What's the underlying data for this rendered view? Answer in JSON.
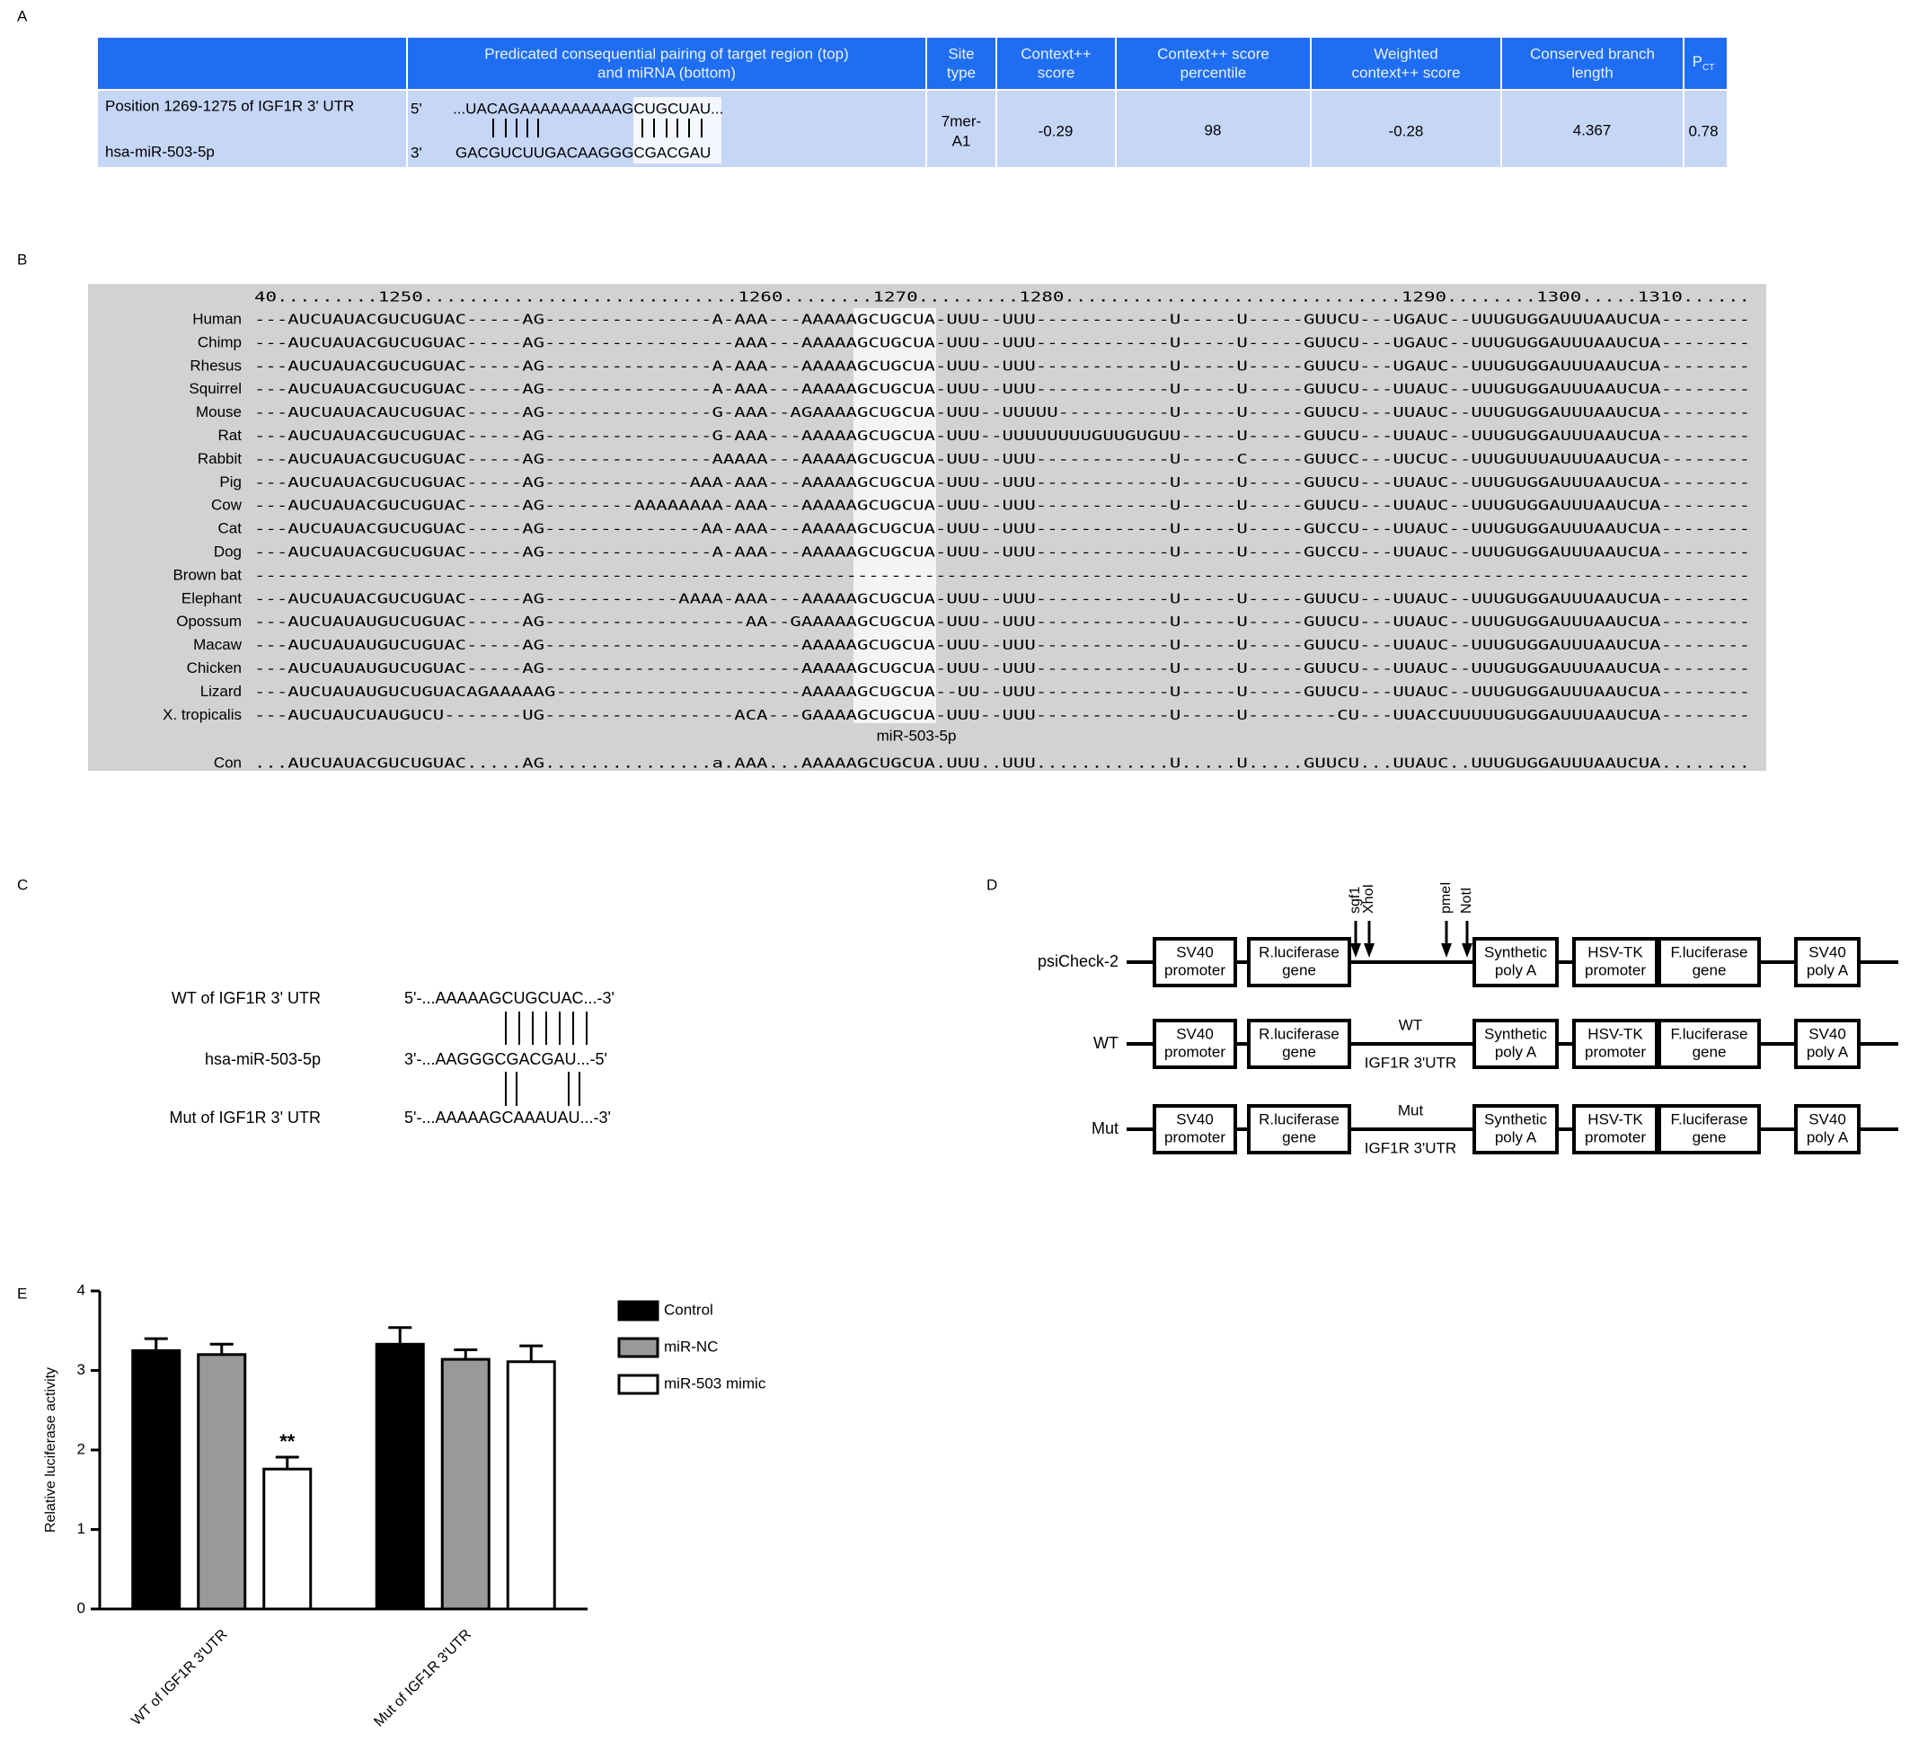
{
  "panel_labels": [
    "A",
    "B",
    "C",
    "D",
    "E"
  ],
  "panel_a": {
    "headers": [
      [
        "Predicated consequential pairing of target region (top)",
        "and miRNA (bottom)"
      ],
      [
        "Site",
        "type"
      ],
      [
        "Context++",
        "score"
      ],
      [
        "Context++ score",
        "percentile"
      ],
      [
        "Weighted",
        "context++ score"
      ],
      [
        "Conserved branch",
        "length"
      ]
    ],
    "pct_header": {
      "text": "P",
      "sub": "CT"
    },
    "row": {
      "position": "Position 1269-1275 of IGF1R 3' UTR",
      "mirna": "hsa-miR-503-5p",
      "top_end": "5'",
      "top_seq": "...UACAGAAAAAAAAAAGCUGCUAU...",
      "bottom_end": "3'",
      "bottom_seq": "GACGUCUUGACAAGGGCGACGAU",
      "site_type": [
        "7mer-",
        "A1"
      ],
      "context_score": -0.29,
      "percentile": 98,
      "weighted_score": -0.28,
      "branch_length": 4.367,
      "pct": 0.78
    }
  },
  "panel_b": {
    "ruler": " 40.........1250............................1260........1270.........1280..............................1290........1300.....1310......",
    "species": [
      {
        "name": "Human",
        "name_color": "#1a1ad6",
        "color": "#000000",
        "sequence": "---AUCUAUACGUCUGUAC-----AG---------------A-AAA---AAAAAGCUGCUA-UUU--UUU------------U-----U-----GUUCU---UGAUC--UUUGUGGAUUUAAUCUA--------"
      },
      {
        "name": "Chimp",
        "name_color": "#1a1ad6",
        "color": "#1a1ad6",
        "sequence": "---AUCUAUACGUCUGUAC-----AG-----------------AAA---AAAAAGCUGCUA-UUU--UUU------------U-----U-----GUUCU---UGAUC--UUUGUGGAUUUAAUCUA--------"
      },
      {
        "name": "Rhesus",
        "name_color": "#1a1ad6",
        "color": "#8c8c8c",
        "sequence": "---AUCUAUACGUCUGUAC-----AG---------------A-AAA---AAAAAGCUGCUA-UUU--UUU------------U-----U-----GUUCU---UGAUC--UUUGUGGAUUUAAUCUA--------"
      },
      {
        "name": "Squirrel",
        "name_color": "#1a8a1a",
        "color": "#1a1ad6",
        "sequence": "---AUCUAUACGUCUGUAC-----AG---------------A-AAA---AAAAAGCUGCUA-UUU--UUU------------U-----U-----GUUCU---UUAUC--UUUGUGGAUUUAAUCUA--------"
      },
      {
        "name": "Mouse",
        "name_color": "#1a8a1a",
        "color": "#b0179e",
        "sequence": "---AUCUAUACAUCUGUAC-----AG---------------G-AAA--AGAAAAGCUGCUA-UUU--UUUUU----------U-----U-----GUUCU---UUAUC--UUUGUGGAUUUAAUCUA--------"
      },
      {
        "name": "Rat",
        "name_color": "#1a1ad6",
        "color": "#000000",
        "sequence": "---AUCUAUACGUCUGUAC-----AG---------------G-AAA---AAAAAGCUGCUA-UUU--UUUUUUUUGUUGUGUU-----U-----GUUCU---UUAUC--UUUGUGGAUUUAAUCUA--------"
      },
      {
        "name": "Rabbit",
        "name_color": "#1a8a1a",
        "color": "#1a1ad6",
        "sequence": "---AUCUAUACGUCUGUAC-----AG---------------AAAAA---AAAAAGCUGCUA-UUU--UUU------------U-----C-----GUUCC---UUCUC--UUUGUUUAUUUAAUCUA--------"
      },
      {
        "name": "Pig",
        "name_color": "#1a1ad6",
        "color": "#8c8c8c",
        "sequence": "---AUCUAUACGUCUGUAC-----AG-------------AAA-AAA---AAAAAGCUGCUA-UUU--UUU------------U-----U-----GUUCU---UUAUC--UUUGUGGAUUUAAUCUA--------"
      },
      {
        "name": "Cow",
        "name_color": "#1a1ad6",
        "color": "#1a1ad6",
        "sequence": "---AUCUAUACGUCUGUAC-----AG--------AAAAAAAA-AAA---AAAAAGCUGCUA-UUU--UUU------------U-----U-----GUUCU---UUAUC--UUUGUGGAUUUAAUCUA--------"
      },
      {
        "name": "Cat",
        "name_color": "#1a1ad6",
        "color": "#b0179e",
        "sequence": "---AUCUAUACGUCUGUAC-----AG--------------AA-AAA---AAAAAGCUGCUA-UUU--UUU------------U-----U-----GUCCU---UUAUC--UUUGUGGAUUUAAUCUA--------"
      },
      {
        "name": "Dog",
        "name_color": "#1a1ad6",
        "color": "#000000",
        "sequence": "---AUCUAUACGUCUGUAC-----AG---------------A-AAA---AAAAAGCUGCUA-UUU--UUU------------U-----U-----GUCCU---UUAUC--UUUGUGGAUUUAAUCUA--------"
      },
      {
        "name": "Brown bat",
        "name_color": "#1a1ad6",
        "color": "#1a1ad6",
        "sequence": "--------------------------------------------------------------------------------------------------------------------------------------"
      },
      {
        "name": "Elephant",
        "name_color": "#1a8a1a",
        "color": "#8c8c8c",
        "sequence": "---AUCUAUACGUCUGUAC-----AG------------AAAA-AAA---AAAAAGCUGCUA-UUU--UUU------------U-----U-----GUUCU---UUAUC--UUUGUGGAUUUAAUCUA--------"
      },
      {
        "name": "Opossum",
        "name_color": "#1a1ad6",
        "color": "#1a1ad6",
        "sequence": "---AUCUAUAUGUCUGUAC-----AG------------------AA--GAAAAAGCUGCUA-UUU--UUU------------U-----U-----GUUCU---UUAUC--UUUGUGGAUUUAAUCUA--------"
      },
      {
        "name": "Macaw",
        "name_color": "#1a8a1a",
        "color": "#b0179e",
        "sequence": "---AUCUAUAUGUCUGUAC-----AG-----------------------AAAAAGCUGCUA-UUU--UUU------------U-----U-----GUUCU---UUAUC--UUUGUGGAUUUAAUCUA--------"
      },
      {
        "name": "Chicken",
        "name_color": "#1a8a1a",
        "color": "#000000",
        "sequence": "---AUCUAUAUGUCUGUAC-----AG-----------------------AAAAAGCUGCUA-UUU--UUU------------U-----U-----GUUCU---UUAUC--UUUGUGGAUUUAAUCUA--------"
      },
      {
        "name": "Lizard",
        "name_color": "#1a1ad6",
        "color": "#1a1ad6",
        "sequence": "---AUCUAUAUGUCUGUACAGAAAAAG----------------------AAAAAGCUGCUA--UU--UUU------------U-----U-----GUUCU---UUAUC--UUUGUGGAUUUAAUCUA--------"
      },
      {
        "name": "X. tropicalis",
        "name_color": "#1a1ad6",
        "color": "#8c8c8c",
        "sequence": "---AUCUAUCUAUGUCU-------UG-----------------ACA---GAAAAGCUGCUA-UUU--UUU------------U-----U--------CU---UUACCUUUUUGUGGAUUUAAUCUA--------"
      }
    ],
    "mirna_label": "miR-503-5p",
    "consensus": {
      "name": "Con",
      "name_color": "#1a1ad6",
      "color": "#1a8a1a",
      "sequence": "...AUCUAUACGUCUGUAC.....AG...............a.AAA...AAAAAGCUGCUA.UUU..UUU............U.....U.....GUUCU...UUAUC..UUUGUGGAUUUAAUCUA........"
    }
  },
  "panel_c": {
    "rows": [
      {
        "label": "WT of IGF1R 3' UTR",
        "sequence": "5'-...AAAAAGCUGCUAC...-3'"
      },
      {
        "label": "hsa-miR-503-5p",
        "sequence": "3'-...AAGGGCGACGAU...-5'"
      },
      {
        "label": "Mut of IGF1R 3' UTR",
        "sequence": "5'-...AAAAAGCAAAUAU...-3'"
      }
    ]
  },
  "panel_d": {
    "sites": [
      "sgf1",
      "XhoI",
      "pmeI",
      "NotI"
    ],
    "constructs": [
      {
        "label": "psiCheck-2",
        "boxes": [
          [
            "SV40",
            "promoter"
          ],
          [
            "R.luciferase",
            "gene"
          ],
          [
            "Synthetic",
            "poly A"
          ],
          [
            "HSV-TK",
            "promoter"
          ],
          [
            "F.luciferase",
            "gene"
          ],
          [
            "SV40",
            "poly A"
          ]
        ]
      },
      {
        "label": "WT",
        "insert": [
          "WT",
          "IGF1R 3'UTR"
        ],
        "boxes": [
          [
            "SV40",
            "promoter"
          ],
          [
            "R.luciferase",
            "gene"
          ],
          [
            "Synthetic",
            "poly A"
          ],
          [
            "HSV-TK",
            "promoter"
          ],
          [
            "F.luciferase",
            "gene"
          ],
          [
            "SV40",
            "poly A"
          ]
        ]
      },
      {
        "label": "Mut",
        "insert": [
          "Mut",
          "IGF1R 3'UTR"
        ],
        "boxes": [
          [
            "SV40",
            "promoter"
          ],
          [
            "R.luciferase",
            "gene"
          ],
          [
            "Synthetic",
            "poly A"
          ],
          [
            "HSV-TK",
            "promoter"
          ],
          [
            "F.luciferase",
            "gene"
          ],
          [
            "SV40",
            "poly A"
          ]
        ]
      }
    ]
  },
  "chart_data": {
    "type": "bar",
    "categories": [
      "WT of IGF1R 3'UTR",
      "Mut of IGF1R 3'UTR"
    ],
    "ylabel": "Relative luciferase activity",
    "ylim": [
      0,
      4
    ],
    "yticks": [
      0,
      1,
      2,
      3,
      4
    ],
    "legend": "right",
    "series": [
      {
        "name": "Control",
        "color": "#000000",
        "values": [
          3.25,
          3.33
        ],
        "errors": [
          0.15,
          0.21
        ]
      },
      {
        "name": "miR-NC",
        "color": "#999999",
        "values": [
          3.2,
          3.14
        ],
        "errors": [
          0.13,
          0.12
        ]
      },
      {
        "name": "miR-503 mimic",
        "color": "#ffffff",
        "values": [
          1.76,
          3.11
        ],
        "errors": [
          0.15,
          0.2
        ],
        "significance": [
          "**",
          null
        ]
      }
    ]
  }
}
